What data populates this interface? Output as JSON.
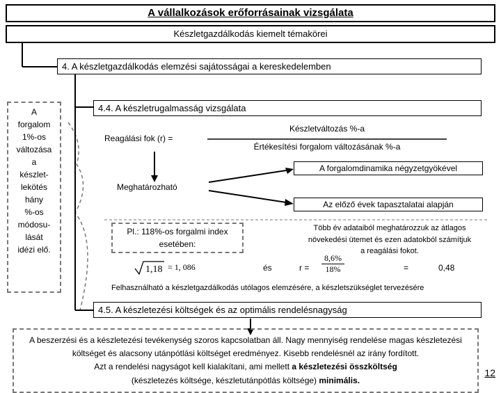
{
  "header": {
    "title": "A vállalkozások erőforrásainak vizsgálata",
    "sub": "Készletgazdálkodás kiemelt témakörei"
  },
  "sec4": "4. A készletgazdálkodás elemzési sajátosságai a kereskedelemben",
  "sec44": "4.4. A készletrugalmasság vizsgálata",
  "sidebar": "A\nforgalom\n1%-os\nváltozása\na\nkészlet-\nlekötés\nhány\n%-os\nmódosu-\nlását\nidézi elő.",
  "reag": {
    "label": "Reagálási fok (r) =",
    "num": "Készletváltozás %-a",
    "den": "Értékesítési forgalom változásának %-a"
  },
  "megh": "Meghatározható",
  "opt1": "A forgalomdinamika négyzetgyökével",
  "opt2": "Az előző évek tapasztalatai alapján",
  "pl_label": "Pl.: 118%-os forgalmi index",
  "pl_label2": "esetében:",
  "right_text": "Több év adataiból meghatározzuk az átlagos\nnövekedési ütemet és ezen adatokból számítjuk\na reagálási fokot.",
  "sqrt": {
    "val": "1,18",
    "eq": "= 1, 086"
  },
  "es": "és",
  "r_calc": {
    "prefix": "r =",
    "num": "8,6%",
    "den": "18%",
    "eq": "=",
    "res": "0,48"
  },
  "note": "Felhasználható a készletgazdálkodás utólagos elemzésére, a készletszükséglet tervezésére",
  "sec45": "4.5. A készletezési költségek és az optimális rendelésnagyság",
  "bottom": {
    "l1": "A beszerzési és a készletezési tevékenység szoros kapcsolatban áll. Nagy mennyiség rendelése magas készletezési",
    "l2": "költséget és alacsony utánpótlási költséget eredményez. Kisebb rendelésnél az irány fordított.",
    "l3a": "Azt a rendelési nagyságot kell kialakítani, ami mellett ",
    "l3b": "a készletezési összköltség",
    "l4a": "(készletezés költsége, készletutánpótlás költsége) ",
    "l4b": "minimális."
  },
  "page": "12"
}
